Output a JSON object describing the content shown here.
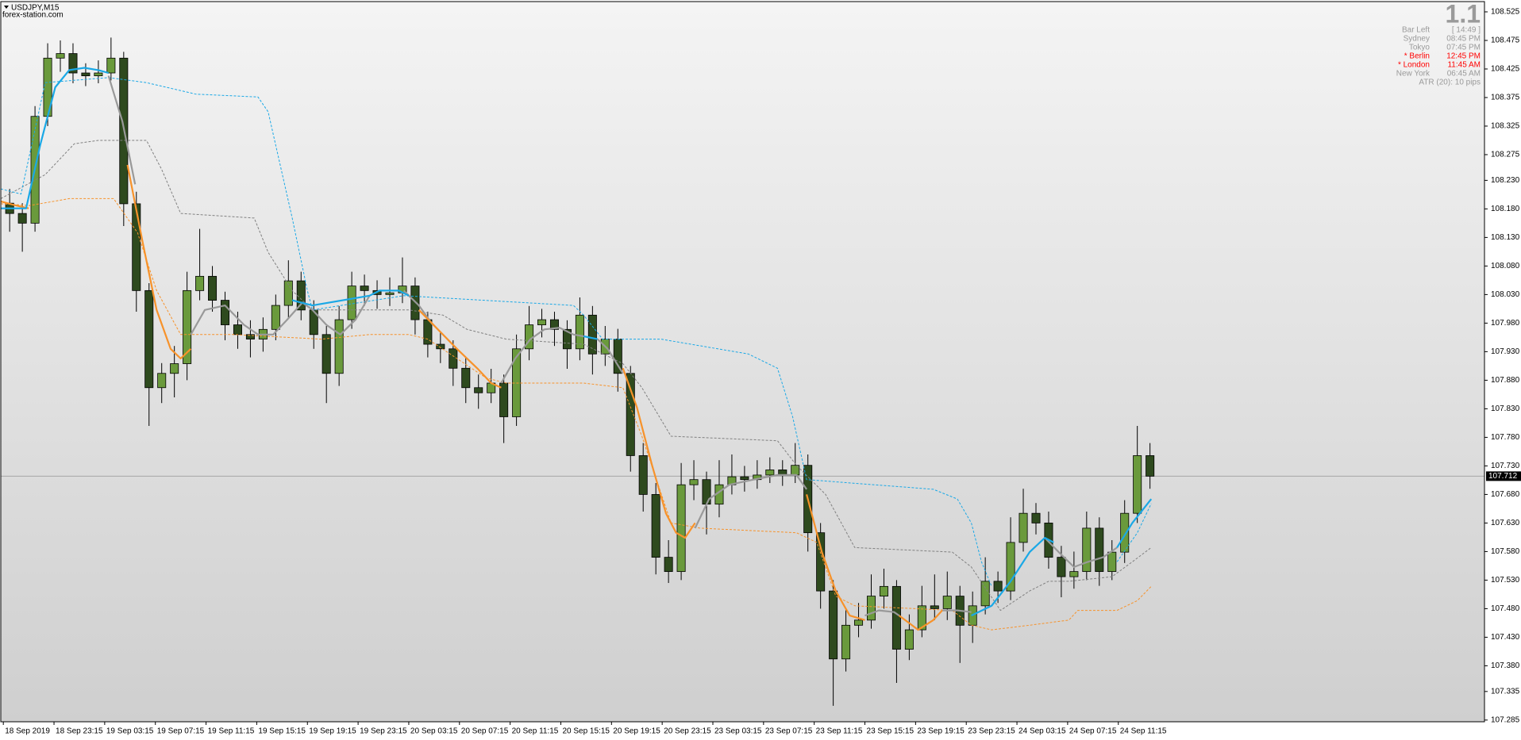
{
  "header": {
    "symbol": "USDJPY,M15",
    "site": "forex-station.com"
  },
  "info_panel": {
    "value": "1.1",
    "rows": [
      {
        "label": "Bar Left",
        "time": "[ 14:49 ]",
        "color": "#9a9a9a"
      },
      {
        "label": "Sydney",
        "time": "08:45 PM",
        "color": "#9a9a9a"
      },
      {
        "label": "Tokyo",
        "time": "07:45 PM",
        "color": "#9a9a9a"
      },
      {
        "label": "* Berlin",
        "time": "12:45 PM",
        "color": "#ff0000"
      },
      {
        "label": "* London",
        "time": "11:45 AM",
        "color": "#ff0000"
      },
      {
        "label": "New York",
        "time": "06:45 AM",
        "color": "#9a9a9a"
      }
    ],
    "footer": "ATR (20): 10 pips"
  },
  "chart_data": {
    "type": "candlestick",
    "up_color": "#6a9a3c",
    "down_color": "#2e4a1e",
    "xlim": [
      -0.7,
      116.4
    ],
    "ylim": [
      107.282,
      108.543
    ],
    "yticks": [
      108.525,
      108.475,
      108.425,
      108.375,
      108.325,
      108.275,
      {
        "value": 108.23,
        "label": "108.230"
      },
      {
        "value": 108.18,
        "label": "108.180"
      },
      {
        "value": 108.13,
        "label": "108.130"
      },
      {
        "value": 108.08,
        "label": "108.080"
      },
      {
        "value": 108.03,
        "label": "108.030"
      },
      {
        "value": 107.98,
        "label": "107.980"
      },
      {
        "value": 107.93,
        "label": "107.930"
      },
      {
        "value": 107.88,
        "label": "107.880"
      },
      {
        "value": 107.83,
        "label": "107.830"
      },
      {
        "value": 107.78,
        "label": "107.780"
      },
      {
        "value": 107.73,
        "label": "107.730"
      },
      {
        "value": 107.68,
        "label": "107.680"
      },
      {
        "value": 107.63,
        "label": "107.630"
      },
      {
        "value": 107.58,
        "label": "107.580"
      },
      {
        "value": 107.53,
        "label": "107.530"
      },
      {
        "value": 107.48,
        "label": "107.480"
      },
      {
        "value": 107.43,
        "label": "107.430"
      },
      {
        "value": 107.38,
        "label": "107.380"
      },
      107.335,
      107.285
    ],
    "x_tick_labels": [
      "18 Sep 2019",
      "18 Sep 23:15",
      "19 Sep 03:15",
      "19 Sep 07:15",
      "19 Sep 11:15",
      "19 Sep 15:15",
      "19 Sep 19:15",
      "19 Sep 23:15",
      "20 Sep 03:15",
      "20 Sep 07:15",
      "20 Sep 11:15",
      "20 Sep 15:15",
      "20 Sep 19:15",
      "20 Sep 23:15",
      "23 Sep 03:15",
      "23 Sep 07:15",
      "23 Sep 11:15",
      "23 Sep 15:15",
      "23 Sep 19:15",
      "23 Sep 23:15",
      "24 Sep 03:15",
      "24 Sep 07:15",
      "24 Sep 11:15"
    ],
    "last_price": 107.712,
    "ohlc": [
      [
        108.19,
        108.215,
        108.14,
        108.172
      ],
      [
        108.172,
        108.19,
        108.105,
        108.155
      ],
      [
        108.155,
        108.36,
        108.14,
        108.342
      ],
      [
        108.342,
        108.47,
        108.325,
        108.444
      ],
      [
        108.444,
        108.475,
        108.42,
        108.452
      ],
      [
        108.452,
        108.47,
        108.4,
        108.418
      ],
      [
        108.418,
        108.435,
        108.395,
        108.413
      ],
      [
        108.413,
        108.44,
        108.4,
        108.418
      ],
      [
        108.418,
        108.48,
        108.405,
        108.444
      ],
      [
        108.444,
        108.455,
        108.15,
        108.189
      ],
      [
        108.189,
        108.21,
        108.0,
        108.037
      ],
      [
        108.037,
        108.05,
        107.8,
        107.867
      ],
      [
        107.867,
        107.91,
        107.84,
        107.892
      ],
      [
        107.892,
        107.94,
        107.85,
        107.909
      ],
      [
        107.909,
        108.07,
        107.88,
        108.037
      ],
      [
        108.037,
        108.145,
        108.02,
        108.062
      ],
      [
        108.062,
        108.08,
        108.0,
        108.02
      ],
      [
        108.02,
        108.035,
        107.95,
        107.977
      ],
      [
        107.977,
        108.0,
        107.935,
        107.96
      ],
      [
        107.96,
        107.985,
        107.92,
        107.952
      ],
      [
        107.952,
        107.99,
        107.93,
        107.969
      ],
      [
        107.969,
        108.03,
        107.95,
        108.011
      ],
      [
        108.011,
        108.09,
        107.99,
        108.054
      ],
      [
        108.054,
        108.07,
        107.985,
        108.003
      ],
      [
        108.003,
        108.02,
        107.935,
        107.96
      ],
      [
        107.96,
        107.975,
        107.84,
        107.892
      ],
      [
        107.892,
        108.01,
        107.87,
        107.986
      ],
      [
        107.986,
        108.07,
        107.97,
        108.045
      ],
      [
        108.045,
        108.065,
        108.01,
        108.037
      ],
      [
        108.037,
        108.055,
        108.005,
        108.03
      ],
      [
        108.03,
        108.06,
        108.01,
        108.033
      ],
      [
        108.033,
        108.095,
        108.015,
        108.045
      ],
      [
        108.045,
        108.06,
        107.96,
        107.986
      ],
      [
        107.986,
        108.0,
        107.92,
        107.943
      ],
      [
        107.943,
        107.965,
        107.91,
        107.935
      ],
      [
        107.935,
        107.95,
        107.87,
        107.901
      ],
      [
        107.901,
        107.92,
        107.84,
        107.867
      ],
      [
        107.867,
        107.89,
        107.83,
        107.858
      ],
      [
        107.858,
        107.9,
        107.84,
        107.875
      ],
      [
        107.875,
        107.89,
        107.77,
        107.816
      ],
      [
        107.816,
        107.96,
        107.8,
        107.935
      ],
      [
        107.935,
        108.01,
        107.915,
        107.977
      ],
      [
        107.977,
        108.005,
        107.955,
        107.986
      ],
      [
        107.986,
        108.0,
        107.94,
        107.969
      ],
      [
        107.969,
        107.985,
        107.9,
        107.935
      ],
      [
        107.935,
        108.025,
        107.915,
        107.994
      ],
      [
        107.994,
        108.01,
        107.89,
        107.926
      ],
      [
        107.926,
        107.975,
        107.905,
        107.952
      ],
      [
        107.952,
        107.97,
        107.86,
        107.892
      ],
      [
        107.892,
        107.905,
        107.72,
        107.748
      ],
      [
        107.748,
        107.77,
        107.65,
        107.68
      ],
      [
        107.68,
        107.7,
        107.54,
        107.57
      ],
      [
        107.57,
        107.6,
        107.525,
        107.545
      ],
      [
        107.545,
        107.735,
        107.53,
        107.697
      ],
      [
        107.697,
        107.74,
        107.67,
        107.706
      ],
      [
        107.706,
        107.72,
        107.61,
        107.663
      ],
      [
        107.663,
        107.74,
        107.64,
        107.697
      ],
      [
        107.697,
        107.75,
        107.68,
        107.711
      ],
      [
        107.711,
        107.73,
        107.685,
        107.706
      ],
      [
        107.706,
        107.74,
        107.69,
        107.714
      ],
      [
        107.714,
        107.745,
        107.7,
        107.723
      ],
      [
        107.723,
        107.74,
        107.695,
        107.714
      ],
      [
        107.714,
        107.77,
        107.7,
        107.731
      ],
      [
        107.731,
        107.75,
        107.58,
        107.613
      ],
      [
        107.613,
        107.63,
        107.48,
        107.511
      ],
      [
        107.511,
        107.53,
        107.31,
        107.392
      ],
      [
        107.392,
        107.48,
        107.37,
        107.451
      ],
      [
        107.451,
        107.49,
        107.43,
        107.46
      ],
      [
        107.46,
        107.54,
        107.445,
        107.502
      ],
      [
        107.502,
        107.55,
        107.48,
        107.519
      ],
      [
        107.519,
        107.53,
        107.35,
        107.409
      ],
      [
        107.409,
        107.47,
        107.39,
        107.443
      ],
      [
        107.443,
        107.52,
        107.43,
        107.485
      ],
      [
        107.485,
        107.54,
        107.46,
        107.48
      ],
      [
        107.48,
        107.545,
        107.46,
        107.502
      ],
      [
        107.502,
        107.52,
        107.385,
        107.451
      ],
      [
        107.451,
        107.51,
        107.42,
        107.485
      ],
      [
        107.485,
        107.57,
        107.47,
        107.528
      ],
      [
        107.528,
        107.545,
        107.49,
        107.511
      ],
      [
        107.511,
        107.64,
        107.495,
        107.596
      ],
      [
        107.596,
        107.69,
        107.58,
        107.647
      ],
      [
        107.647,
        107.665,
        107.61,
        107.63
      ],
      [
        107.63,
        107.65,
        107.55,
        107.57
      ],
      [
        107.57,
        107.59,
        107.5,
        107.536
      ],
      [
        107.536,
        107.58,
        107.515,
        107.545
      ],
      [
        107.545,
        107.65,
        107.53,
        107.621
      ],
      [
        107.621,
        107.64,
        107.52,
        107.545
      ],
      [
        107.545,
        107.6,
        107.53,
        107.579
      ],
      [
        107.579,
        107.67,
        107.56,
        107.647
      ],
      [
        107.647,
        107.8,
        107.63,
        107.748
      ],
      [
        107.748,
        107.77,
        107.69,
        107.712
      ]
    ],
    "lines": [
      {
        "color": "#f7922a",
        "dashed": true,
        "x": [
          -0.7,
          1.6,
          4.7,
          8.2,
          10.1,
          11.6,
          13.5,
          17.7,
          24.6,
          28.4,
          31.5,
          33.0,
          35.3,
          37.6,
          39.2,
          45.3,
          48.4,
          49.9,
          52.2,
          54.5,
          62.1,
          63.7,
          65.2,
          66.7,
          74.4,
          75.9,
          77.5,
          80.5,
          83.6,
          84.3,
          87.4,
          89.0,
          90.1
        ],
        "values": [
          108.189,
          108.186,
          108.198,
          108.198,
          108.138,
          108.037,
          107.96,
          107.96,
          107.952,
          107.96,
          107.96,
          107.952,
          107.918,
          107.884,
          107.875,
          107.875,
          107.867,
          107.782,
          107.63,
          107.621,
          107.613,
          107.596,
          107.502,
          107.485,
          107.477,
          107.451,
          107.443,
          107.451,
          107.46,
          107.477,
          107.477,
          107.494,
          107.519
        ]
      },
      {
        "color": "#808080",
        "dashed": true,
        "x": [
          -0.7,
          2.8,
          5.1,
          7.0,
          10.8,
          12.0,
          13.5,
          19.3,
          20.4,
          22.3,
          23.9,
          31.5,
          34.2,
          36.1,
          39.2,
          45.3,
          48.4,
          49.9,
          52.2,
          60.6,
          62.1,
          64.4,
          66.7,
          74.4,
          75.9,
          78.2,
          80.5,
          82.0,
          83.6,
          87.0,
          88.6,
          90.1
        ],
        "values": [
          108.198,
          108.24,
          108.294,
          108.3,
          108.3,
          108.249,
          108.172,
          108.164,
          108.104,
          108.037,
          108.003,
          108.003,
          107.994,
          107.969,
          107.952,
          107.943,
          107.909,
          107.867,
          107.782,
          107.774,
          107.731,
          107.68,
          107.587,
          107.579,
          107.553,
          107.477,
          107.511,
          107.528,
          107.528,
          107.536,
          107.562,
          107.587
        ]
      },
      {
        "color": "#1aa8e6",
        "dashed": true,
        "x": [
          -0.7,
          0.9,
          2.8,
          7.8,
          10.8,
          14.7,
          19.6,
          20.4,
          22.3,
          23.5,
          23.9,
          31.1,
          44.5,
          45.3,
          46.8,
          51.4,
          58.3,
          60.6,
          61.8,
          62.9,
          72.9,
          74.8,
          75.9,
          76.7,
          77.5,
          87.4,
          87.4,
          89.0,
          90.1
        ],
        "values": [
          108.215,
          108.206,
          108.401,
          108.41,
          108.401,
          108.381,
          108.376,
          108.35,
          108.164,
          108.037,
          108.003,
          108.028,
          108.011,
          107.994,
          107.952,
          107.952,
          107.926,
          107.901,
          107.816,
          107.706,
          107.689,
          107.672,
          107.63,
          107.562,
          107.519,
          null,
          107.562,
          107.613,
          107.664
        ]
      },
      {
        "color": "#999999",
        "dashed": false,
        "x": [
          7.8,
          8.9,
          9.9,
          14.3,
          14.3,
          15.4,
          17.0,
          18.5,
          19.6,
          20.8,
          21.9,
          23.1,
          23.9,
          25.0,
          26.1,
          27.3,
          28.4,
          31.1,
          31.1,
          32.3,
          33.4,
          38.8,
          38.8,
          39.9,
          41.1,
          42.2,
          43.4,
          44.5,
          45.3,
          46.4,
          46.4,
          47.2,
          48.4,
          54.1,
          54.1,
          55.2,
          56.8,
          58.7,
          60.6,
          62.1,
          62.9,
          67.5,
          67.5,
          68.6,
          69.8,
          70.2,
          73.6,
          73.6,
          74.8,
          75.9,
          81.7,
          81.7,
          82.8,
          84.0,
          85.1,
          86.3,
          87.4
        ],
        "values": [
          108.413,
          108.333,
          108.223,
          null,
          107.96,
          108.003,
          108.011,
          107.977,
          107.96,
          107.96,
          107.986,
          108.016,
          108.003,
          107.977,
          107.96,
          107.986,
          108.028,
          null,
          108.037,
          108.011,
          107.977,
          null,
          107.875,
          107.918,
          107.952,
          107.969,
          107.972,
          107.96,
          107.957,
          null,
          107.952,
          107.935,
          107.892,
          null,
          107.621,
          107.672,
          107.697,
          107.706,
          107.714,
          107.714,
          107.689,
          null,
          107.468,
          107.477,
          107.474,
          107.468,
          null,
          107.477,
          107.477,
          107.474,
          null,
          107.604,
          107.579,
          107.553,
          107.562,
          107.57,
          107.587
        ]
      },
      {
        "color": "#f7922a",
        "dashed": false,
        "x": [
          -0.7,
          0.5,
          1.5,
          9.3,
          9.3,
          10.5,
          11.6,
          12.7,
          13.5,
          14.3,
          32.3,
          32.3,
          33.8,
          35.3,
          36.9,
          38.0,
          38.8,
          48.4,
          48.4,
          49.5,
          50.7,
          51.8,
          52.6,
          53.3,
          54.1,
          62.9,
          62.9,
          64.1,
          65.2,
          66.3,
          67.5,
          70.2,
          70.2,
          71.7,
          72.9,
          73.6
        ],
        "values": [
          108.193,
          108.186,
          108.181,
          null,
          108.257,
          108.121,
          108.003,
          107.935,
          107.918,
          107.935,
          null,
          108.003,
          107.969,
          107.935,
          107.901,
          107.875,
          107.867,
          null,
          107.901,
          107.833,
          107.731,
          107.647,
          107.613,
          107.604,
          107.63,
          null,
          107.68,
          107.579,
          107.511,
          107.468,
          107.46,
          null,
          107.468,
          107.443,
          107.46,
          107.477
        ]
      },
      {
        "color": "#1aa8e6",
        "dashed": false,
        "x": [
          -0.7,
          1.3,
          2.4,
          3.6,
          4.7,
          5.9,
          7.0,
          7.8,
          22.3,
          22.3,
          23.9,
          28.4,
          29.2,
          30.7,
          31.5,
          45.3,
          45.3,
          46.4,
          75.9,
          75.9,
          77.5,
          79.0,
          80.5,
          81.7,
          82.4,
          87.4,
          87.4,
          88.6,
          90.1
        ],
        "values": [
          108.181,
          108.181,
          108.291,
          108.393,
          108.423,
          108.427,
          108.423,
          108.418,
          null,
          108.02,
          108.011,
          108.028,
          108.037,
          108.037,
          108.028,
          null,
          107.957,
          107.952,
          null,
          107.468,
          107.485,
          107.528,
          107.579,
          107.604,
          107.596,
          null,
          107.587,
          107.63,
          107.672
        ]
      }
    ]
  }
}
